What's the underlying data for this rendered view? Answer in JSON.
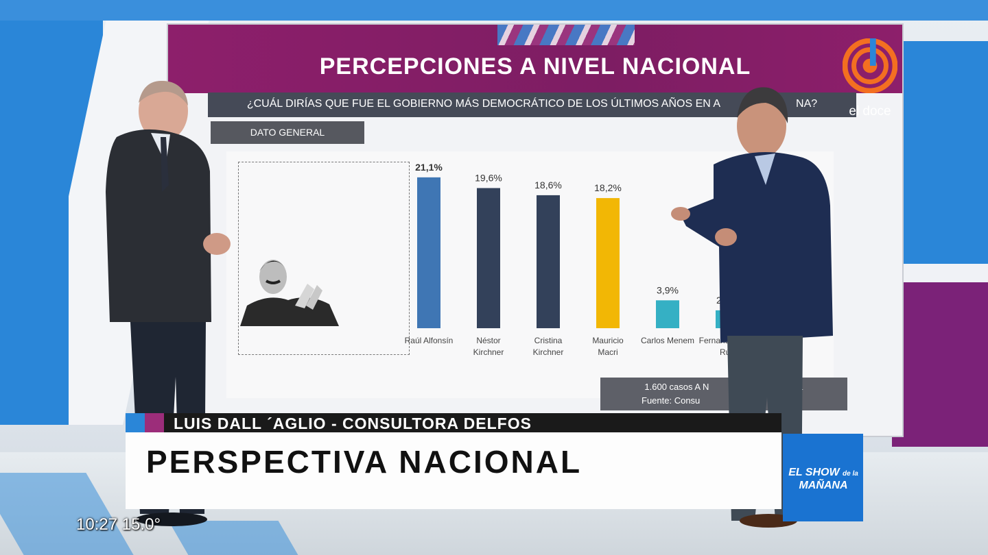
{
  "broadcast": {
    "channel_logo_text": "el doce",
    "show_logo": {
      "line1": "EL SHOW",
      "line2": "de la",
      "line3": "MAÑANA"
    },
    "clock": "10:27",
    "temperature": "15.0°"
  },
  "screen": {
    "title": "PERCEPCIONES A NIVEL NACIONAL",
    "question": "¿CUÁL DIRÍAS QUE FUE EL GOBIERNO MÁS DEMOCRÁTICO DE LOS ÚLTIMOS AÑOS EN A",
    "question_tail": "NA?",
    "segment_label": "DATO GENERAL",
    "source_line1": "1.600 casos A N",
    "source_line1_tail": "L",
    "source_line2": "Fuente: Consu"
  },
  "chart_data": {
    "type": "bar",
    "categories": [
      "Raúl Alfonsín",
      "Néstor Kirchner",
      "Cristina Kirchner",
      "Mauricio Macri",
      "Carlos Menem",
      "Fernando De la Rúa"
    ],
    "values": [
      21.1,
      19.6,
      18.6,
      18.2,
      3.9,
      2.5
    ],
    "value_labels": [
      "21,1%",
      "19,6%",
      "18,6%",
      "18,2%",
      "3,9%",
      "2,5%"
    ],
    "colors": [
      "#3f76b4",
      "#33415a",
      "#33415a",
      "#f2b705",
      "#35b0c4",
      "#35b0c4"
    ],
    "highlighted": "Raúl Alfonsín",
    "ylim": [
      0,
      23
    ]
  },
  "lower_third": {
    "name": "LUIS DALL ´AGLIO - CONSULTORA DELFOS",
    "headline": "PERSPECTIVA NACIONAL"
  }
}
